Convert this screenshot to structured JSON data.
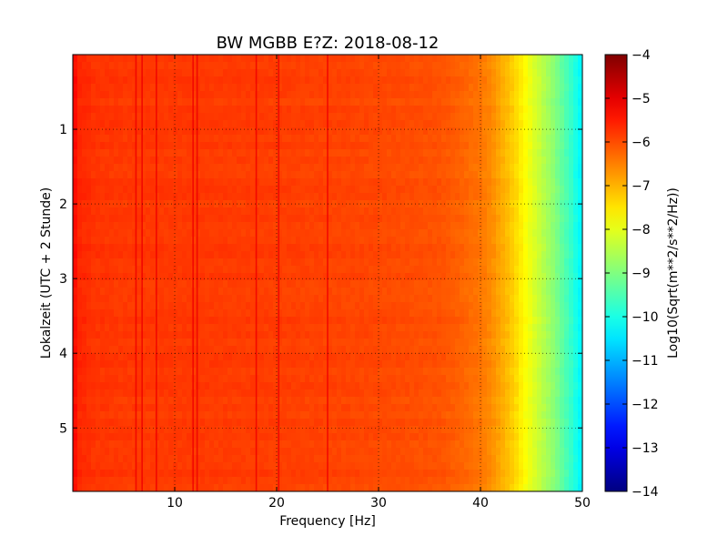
{
  "chart_data": {
    "type": "heatmap",
    "title": "BW MGBB E?Z: 2018-08-12",
    "xlabel": "Frequency [Hz]",
    "ylabel": "Lokalzeit (UTC + 2 Stunde)",
    "xlim": [
      0,
      50
    ],
    "ylim": [
      5.85,
      0
    ],
    "x_ticks": [
      10,
      20,
      30,
      40,
      50
    ],
    "x_tick_labels": [
      "10",
      "20",
      "30",
      "40",
      "50"
    ],
    "y_ticks": [
      1,
      2,
      3,
      4,
      5
    ],
    "y_tick_labels": [
      "1",
      "2",
      "3",
      "4",
      "5"
    ],
    "grid": true,
    "grid_style": "dotted",
    "colormap": "jet",
    "colorbar": {
      "label": "Log10(Sqrt(m**2/s**2/Hz))",
      "range": [
        -14,
        -4
      ],
      "ticks": [
        -4,
        -5,
        -6,
        -7,
        -8,
        -9,
        -10,
        -11,
        -12,
        -13,
        -14
      ],
      "tick_labels": [
        "−4",
        "−5",
        "−6",
        "−7",
        "−8",
        "−9",
        "−10",
        "−11",
        "−12",
        "−13",
        "−14"
      ]
    },
    "frequency_profile": {
      "frequency_hz": [
        0,
        0.5,
        2,
        5,
        10,
        20,
        30,
        36,
        38,
        40,
        41,
        42,
        43,
        44,
        45,
        46,
        47,
        48,
        49,
        50
      ],
      "log10_amplitude": [
        -5.2,
        -5.6,
        -5.75,
        -5.8,
        -5.8,
        -5.85,
        -5.95,
        -6.05,
        -6.2,
        -6.4,
        -6.6,
        -6.9,
        -7.2,
        -7.6,
        -8.0,
        -8.4,
        -8.8,
        -9.3,
        -9.8,
        -10.4
      ]
    },
    "spectral_lines_hz": [
      6.2,
      6.8,
      8.2,
      11.8,
      12.2,
      18.0,
      20.2,
      25.0
    ]
  }
}
